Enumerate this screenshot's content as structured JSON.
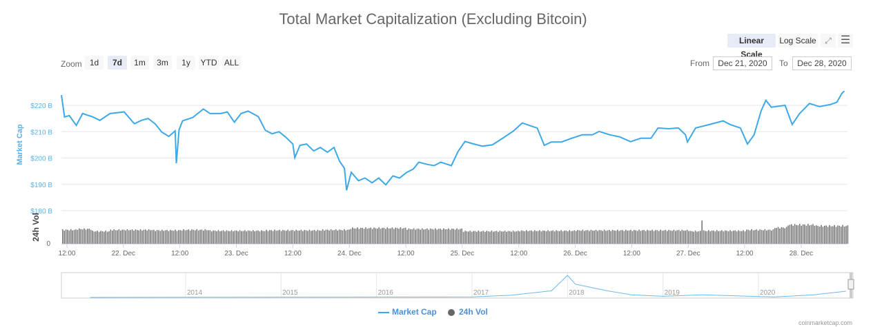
{
  "title": "Total Market Capitalization (Excluding Bitcoin)",
  "scale_buttons": {
    "linear": "Linear Scale",
    "log": "Log Scale",
    "selected": "linear"
  },
  "icons": {
    "fullscreen": "fullscreen-icon",
    "menu": "hamburger-menu-icon"
  },
  "zoom": {
    "label": "Zoom",
    "options": [
      "1d",
      "7d",
      "1m",
      "3m",
      "1y",
      "YTD",
      "ALL"
    ],
    "selected": "7d"
  },
  "range": {
    "from_label": "From",
    "from": "Dec 21, 2020",
    "to_label": "To",
    "to": "Dec 28, 2020"
  },
  "legend": {
    "market_cap": "Market Cap",
    "volume": "24h Vol"
  },
  "credit": "coinmarketcap.com",
  "colors": {
    "market_cap": "#3da8e8",
    "volume": "#666666",
    "navigator": "#6bb8ea"
  },
  "chart_data": {
    "type": "line",
    "title": "Total Market Capitalization (Excluding Bitcoin)",
    "ylabel": "Market Cap",
    "ylabel2": "24h Vol",
    "y_ticks": [
      "$180 B",
      "$190 B",
      "$200 B",
      "$210 B",
      "$220 B"
    ],
    "ylim": [
      180,
      225
    ],
    "y_unit": "billion USD",
    "vol_ticks": [
      "0"
    ],
    "x_ticks": [
      {
        "t": "2020-12-21T12:00",
        "label": "12:00"
      },
      {
        "t": "2020-12-22T00:00",
        "label": "22. Dec"
      },
      {
        "t": "2020-12-22T12:00",
        "label": "12:00"
      },
      {
        "t": "2020-12-23T00:00",
        "label": "23. Dec"
      },
      {
        "t": "2020-12-23T12:00",
        "label": "12:00"
      },
      {
        "t": "2020-12-24T00:00",
        "label": "24. Dec"
      },
      {
        "t": "2020-12-24T12:00",
        "label": "12:00"
      },
      {
        "t": "2020-12-25T00:00",
        "label": "25. Dec"
      },
      {
        "t": "2020-12-25T12:00",
        "label": "12:00"
      },
      {
        "t": "2020-12-26T00:00",
        "label": "26. Dec"
      },
      {
        "t": "2020-12-26T12:00",
        "label": "12:00"
      },
      {
        "t": "2020-12-27T00:00",
        "label": "27. Dec"
      },
      {
        "t": "2020-12-27T12:00",
        "label": "12:00"
      },
      {
        "t": "2020-12-28T00:00",
        "label": "28. Dec"
      }
    ],
    "xlim": [
      "2020-12-21T10:50",
      "2020-12-28T09:50"
    ],
    "grid": true,
    "legend_position": "bottom",
    "series": [
      {
        "name": "Market Cap",
        "points": [
          [
            "2020-12-21T10:50",
            223.9
          ],
          [
            "2020-12-21T11:30",
            215.6
          ],
          [
            "2020-12-21T12:30",
            216.1
          ],
          [
            "2020-12-21T14:00",
            212.4
          ],
          [
            "2020-12-21T15:20",
            216.9
          ],
          [
            "2020-12-21T17:30",
            215.6
          ],
          [
            "2020-12-21T19:00",
            214.3
          ],
          [
            "2020-12-21T21:10",
            216.9
          ],
          [
            "2020-12-22T00:10",
            217.5
          ],
          [
            "2020-12-22T02:20",
            213.0
          ],
          [
            "2020-12-22T03:50",
            214.3
          ],
          [
            "2020-12-22T05:15",
            215.0
          ],
          [
            "2020-12-22T06:45",
            213.0
          ],
          [
            "2020-12-22T08:10",
            209.8
          ],
          [
            "2020-12-22T09:40",
            208.2
          ],
          [
            "2020-12-22T11:00",
            210.3
          ],
          [
            "2020-12-22T11:15",
            198.0
          ],
          [
            "2020-12-22T11:50",
            210.8
          ],
          [
            "2020-12-22T12:35",
            214.1
          ],
          [
            "2020-12-22T14:45",
            215.4
          ],
          [
            "2020-12-22T17:00",
            218.6
          ],
          [
            "2020-12-22T18:25",
            216.9
          ],
          [
            "2020-12-22T20:40",
            216.9
          ],
          [
            "2020-12-22T22:05",
            217.5
          ],
          [
            "2020-12-22T23:35",
            213.6
          ],
          [
            "2020-12-23T01:00",
            216.9
          ],
          [
            "2020-12-23T02:30",
            217.8
          ],
          [
            "2020-12-23T04:40",
            215.7
          ],
          [
            "2020-12-23T06:10",
            210.5
          ],
          [
            "2020-12-23T07:35",
            209.2
          ],
          [
            "2020-12-23T09:05",
            210.0
          ],
          [
            "2020-12-23T10:30",
            207.9
          ],
          [
            "2020-12-23T12:00",
            205.3
          ],
          [
            "2020-12-23T12:25",
            200.1
          ],
          [
            "2020-12-23T13:30",
            204.8
          ],
          [
            "2020-12-23T14:55",
            205.3
          ],
          [
            "2020-12-23T16:25",
            202.7
          ],
          [
            "2020-12-23T17:50",
            204.0
          ],
          [
            "2020-12-23T19:20",
            202.2
          ],
          [
            "2020-12-23T20:45",
            204.0
          ],
          [
            "2020-12-23T21:55",
            198.8
          ],
          [
            "2020-12-23T22:58",
            196.1
          ],
          [
            "2020-12-23T23:25",
            187.7
          ],
          [
            "2020-12-24T00:25",
            194.6
          ],
          [
            "2020-12-24T01:55",
            191.4
          ],
          [
            "2020-12-24T03:20",
            192.4
          ],
          [
            "2020-12-24T04:50",
            190.6
          ],
          [
            "2020-12-24T06:15",
            192.4
          ],
          [
            "2020-12-24T07:45",
            189.8
          ],
          [
            "2020-12-24T09:15",
            193.2
          ],
          [
            "2020-12-24T10:40",
            192.4
          ],
          [
            "2020-12-24T12:10",
            194.5
          ],
          [
            "2020-12-24T13:35",
            195.8
          ],
          [
            "2020-12-24T14:45",
            198.4
          ],
          [
            "2020-12-24T16:30",
            197.6
          ],
          [
            "2020-12-24T18:00",
            197.1
          ],
          [
            "2020-12-24T19:25",
            198.4
          ],
          [
            "2020-12-24T21:40",
            197.1
          ],
          [
            "2020-12-24T23:05",
            202.4
          ],
          [
            "2020-12-25T00:35",
            206.3
          ],
          [
            "2020-12-25T02:05",
            205.5
          ],
          [
            "2020-12-25T04:15",
            204.5
          ],
          [
            "2020-12-25T06:25",
            205.0
          ],
          [
            "2020-12-25T08:40",
            207.6
          ],
          [
            "2020-12-25T10:50",
            210.2
          ],
          [
            "2020-12-25T12:45",
            213.3
          ],
          [
            "2020-12-25T14:30",
            212.2
          ],
          [
            "2020-12-25T15:55",
            211.4
          ],
          [
            "2020-12-25T17:25",
            204.8
          ],
          [
            "2020-12-25T18:55",
            206.1
          ],
          [
            "2020-12-25T21:05",
            206.1
          ],
          [
            "2020-12-25T23:15",
            207.5
          ],
          [
            "2020-12-26T01:30",
            208.8
          ],
          [
            "2020-12-26T03:40",
            208.8
          ],
          [
            "2020-12-26T05:05",
            210.1
          ],
          [
            "2020-12-26T07:20",
            208.8
          ],
          [
            "2020-12-26T09:30",
            208.0
          ],
          [
            "2020-12-26T11:45",
            206.2
          ],
          [
            "2020-12-26T13:55",
            207.5
          ],
          [
            "2020-12-26T16:05",
            207.5
          ],
          [
            "2020-12-26T17:35",
            211.4
          ],
          [
            "2020-12-26T19:45",
            211.1
          ],
          [
            "2020-12-26T21:55",
            211.4
          ],
          [
            "2020-12-26T23:25",
            208.8
          ],
          [
            "2020-12-26T23:50",
            206.1
          ],
          [
            "2020-12-27T01:35",
            211.4
          ],
          [
            "2020-12-27T04:30",
            212.7
          ],
          [
            "2020-12-27T07:25",
            214.1
          ],
          [
            "2020-12-27T08:55",
            212.7
          ],
          [
            "2020-12-27T11:05",
            211.4
          ],
          [
            "2020-12-27T12:35",
            205.3
          ],
          [
            "2020-12-27T14:00",
            208.8
          ],
          [
            "2020-12-27T15:30",
            218.0
          ],
          [
            "2020-12-27T16:30",
            221.9
          ],
          [
            "2020-12-27T17:40",
            219.3
          ],
          [
            "2020-12-27T20:35",
            220.0
          ],
          [
            "2020-12-27T22:05",
            212.7
          ],
          [
            "2020-12-27T23:35",
            216.7
          ],
          [
            "2020-12-28T01:45",
            220.7
          ],
          [
            "2020-12-28T03:55",
            219.5
          ],
          [
            "2020-12-28T06:10",
            220.3
          ],
          [
            "2020-12-28T07:35",
            221.2
          ],
          [
            "2020-12-28T08:40",
            224.6
          ],
          [
            "2020-12-28T09:10",
            225.4
          ]
        ]
      },
      {
        "name": "24h Vol",
        "relative_levels": [
          [
            "2020-12-21T10:50",
            0.62
          ],
          [
            "2020-12-21T14:00",
            0.66
          ],
          [
            "2020-12-21T17:00",
            0.56
          ],
          [
            "2020-12-21T21:00",
            0.62
          ],
          [
            "2020-12-22T06:00",
            0.6
          ],
          [
            "2020-12-22T12:00",
            0.62
          ],
          [
            "2020-12-22T18:00",
            0.58
          ],
          [
            "2020-12-23T06:00",
            0.6
          ],
          [
            "2020-12-23T18:00",
            0.62
          ],
          [
            "2020-12-24T00:00",
            0.7
          ],
          [
            "2020-12-24T12:00",
            0.66
          ],
          [
            "2020-12-25T00:00",
            0.56
          ],
          [
            "2020-12-25T12:00",
            0.58
          ],
          [
            "2020-12-26T00:00",
            0.6
          ],
          [
            "2020-12-26T12:00",
            0.6
          ],
          [
            "2020-12-27T00:00",
            0.56
          ],
          [
            "2020-12-27T02:40",
            1.1
          ],
          [
            "2020-12-27T03:00",
            0.58
          ],
          [
            "2020-12-27T12:00",
            0.62
          ],
          [
            "2020-12-27T18:00",
            0.72
          ],
          [
            "2020-12-27T21:00",
            0.85
          ],
          [
            "2020-12-28T03:00",
            0.8
          ],
          [
            "2020-12-28T09:50",
            0.8
          ]
        ]
      }
    ],
    "navigator": {
      "year_labels": [
        "2014",
        "2015",
        "2016",
        "2017",
        "2018",
        "2019",
        "2020"
      ],
      "points": [
        [
          "2013",
          0.0
        ],
        [
          "2017-01",
          0.02
        ],
        [
          "2017-06",
          0.1
        ],
        [
          "2017-11",
          0.3
        ],
        [
          "2018-01",
          1.0
        ],
        [
          "2018-02",
          0.6
        ],
        [
          "2018-04",
          0.45
        ],
        [
          "2018-06",
          0.3
        ],
        [
          "2018-09",
          0.12
        ],
        [
          "2019-01",
          0.05
        ],
        [
          "2019-06",
          0.12
        ],
        [
          "2019-12",
          0.05
        ],
        [
          "2020-03",
          0.02
        ],
        [
          "2020-08",
          0.12
        ],
        [
          "2020-12",
          0.28
        ]
      ]
    }
  }
}
